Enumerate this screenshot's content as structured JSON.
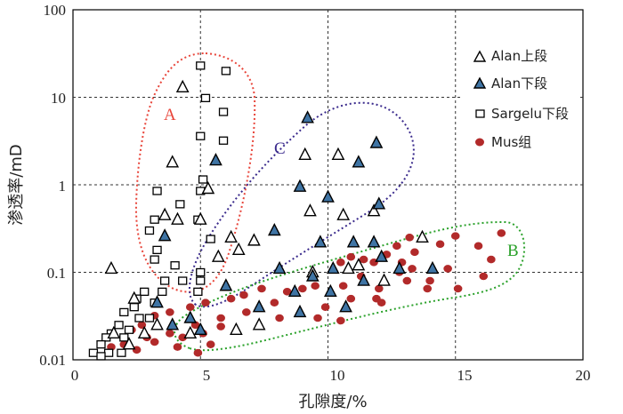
{
  "chart_data": {
    "type": "scatter",
    "xlabel": "孔隙度/%",
    "ylabel": "渗透率/mD",
    "xlim": [
      0,
      20
    ],
    "ylim": [
      0.01,
      100
    ],
    "yscale": "log",
    "x_ticks": [
      "0",
      "5",
      "10",
      "15",
      "20"
    ],
    "y_ticks": [
      "0.01",
      "0.1",
      "1",
      "10",
      "100"
    ],
    "grid": "dashed, at x = 5, 10, 15 and y = 0.1, 1, 10",
    "legend_position": "top-right",
    "series": [
      {
        "name": "Alan上段",
        "marker": "open-triangle",
        "color": "#ffffff",
        "stroke": "#000000",
        "points": [
          [
            4.3,
            13
          ],
          [
            3.9,
            1.8
          ],
          [
            5.3,
            0.9
          ],
          [
            3.6,
            0.45
          ],
          [
            4.1,
            0.4
          ],
          [
            5.7,
            0.15
          ],
          [
            6.5,
            0.18
          ],
          [
            7.1,
            0.23
          ],
          [
            6.2,
            0.25
          ],
          [
            9.1,
            2.2
          ],
          [
            10.4,
            2.2
          ],
          [
            9.3,
            0.5
          ],
          [
            10.6,
            0.45
          ],
          [
            11.8,
            0.5
          ],
          [
            11.2,
            0.12
          ],
          [
            12.2,
            0.08
          ],
          [
            13.7,
            0.25
          ],
          [
            1.5,
            0.11
          ],
          [
            2.4,
            0.05
          ],
          [
            3.3,
            0.025
          ],
          [
            4.6,
            0.02
          ],
          [
            1.6,
            0.02
          ],
          [
            2.2,
            0.015
          ],
          [
            2.8,
            0.02
          ],
          [
            6.4,
            0.022
          ],
          [
            7.3,
            0.025
          ],
          [
            9.4,
            0.1
          ],
          [
            10.8,
            0.11
          ],
          [
            5.0,
            0.4
          ]
        ]
      },
      {
        "name": "Alan下段",
        "marker": "filled-triangle",
        "color": "#3f74a4",
        "stroke": "#000000",
        "points": [
          [
            9.2,
            5.8
          ],
          [
            11.9,
            3.0
          ],
          [
            12.0,
            0.6
          ],
          [
            10.0,
            0.72
          ],
          [
            8.9,
            0.95
          ],
          [
            11.2,
            1.8
          ],
          [
            5.6,
            1.9
          ],
          [
            7.9,
            0.3
          ],
          [
            9.7,
            0.22
          ],
          [
            11.0,
            0.22
          ],
          [
            11.8,
            0.22
          ],
          [
            3.6,
            0.26
          ],
          [
            8.1,
            0.11
          ],
          [
            9.4,
            0.09
          ],
          [
            10.2,
            0.11
          ],
          [
            12.1,
            0.15
          ],
          [
            12.8,
            0.11
          ],
          [
            14.1,
            0.11
          ],
          [
            6.0,
            0.07
          ],
          [
            8.7,
            0.06
          ],
          [
            10.1,
            0.06
          ],
          [
            11.4,
            0.08
          ],
          [
            7.3,
            0.04
          ],
          [
            8.9,
            0.035
          ],
          [
            10.7,
            0.04
          ],
          [
            3.3,
            0.045
          ],
          [
            4.6,
            0.03
          ],
          [
            5.0,
            0.022
          ],
          [
            3.9,
            0.025
          ]
        ]
      },
      {
        "name": "Sargelu下段",
        "marker": "open-square",
        "color": "#ffffff",
        "stroke": "#000000",
        "points": [
          [
            5.0,
            23
          ],
          [
            6.0,
            20
          ],
          [
            5.2,
            9.8
          ],
          [
            5.9,
            6.8
          ],
          [
            5.0,
            3.6
          ],
          [
            5.9,
            3.2
          ],
          [
            5.1,
            1.15
          ],
          [
            3.3,
            0.85
          ],
          [
            5.0,
            0.85
          ],
          [
            4.2,
            0.6
          ],
          [
            3.2,
            0.4
          ],
          [
            4.9,
            0.4
          ],
          [
            3.0,
            0.3
          ],
          [
            5.4,
            0.24
          ],
          [
            3.3,
            0.18
          ],
          [
            4.0,
            0.12
          ],
          [
            3.2,
            0.14
          ],
          [
            5.0,
            0.1
          ],
          [
            3.6,
            0.08
          ],
          [
            4.3,
            0.08
          ],
          [
            5.0,
            0.08
          ],
          [
            2.8,
            0.06
          ],
          [
            3.5,
            0.06
          ],
          [
            4.9,
            0.06
          ],
          [
            2.5,
            0.05
          ],
          [
            3.2,
            0.045
          ],
          [
            2.4,
            0.04
          ],
          [
            2.0,
            0.035
          ],
          [
            3.0,
            0.03
          ],
          [
            2.6,
            0.03
          ],
          [
            1.8,
            0.025
          ],
          [
            2.2,
            0.022
          ],
          [
            1.5,
            0.02
          ],
          [
            1.3,
            0.018
          ],
          [
            2.0,
            0.018
          ],
          [
            1.1,
            0.015
          ],
          [
            0.8,
            0.012
          ],
          [
            1.4,
            0.012
          ],
          [
            1.9,
            0.012
          ],
          [
            1.1,
            0.011
          ]
        ]
      },
      {
        "name": "Mus组",
        "marker": "filled-circle",
        "color": "#b22a2a",
        "stroke": "#b22a2a",
        "points": [
          [
            16.8,
            0.28
          ],
          [
            15.0,
            0.26
          ],
          [
            15.9,
            0.2
          ],
          [
            16.4,
            0.14
          ],
          [
            16.1,
            0.09
          ],
          [
            15.1,
            0.065
          ],
          [
            13.2,
            0.25
          ],
          [
            12.7,
            0.2
          ],
          [
            14.4,
            0.21
          ],
          [
            13.4,
            0.17
          ],
          [
            12.3,
            0.16
          ],
          [
            11.8,
            0.13
          ],
          [
            11.4,
            0.14
          ],
          [
            12.9,
            0.13
          ],
          [
            13.3,
            0.11
          ],
          [
            14.7,
            0.11
          ],
          [
            10.5,
            0.13
          ],
          [
            10.9,
            0.15
          ],
          [
            12.8,
            0.1
          ],
          [
            11.3,
            0.09
          ],
          [
            13.1,
            0.08
          ],
          [
            14.0,
            0.08
          ],
          [
            12.0,
            0.065
          ],
          [
            13.9,
            0.065
          ],
          [
            10.6,
            0.07
          ],
          [
            9.5,
            0.07
          ],
          [
            11.9,
            0.05
          ],
          [
            10.9,
            0.05
          ],
          [
            9.0,
            0.065
          ],
          [
            8.4,
            0.06
          ],
          [
            7.4,
            0.065
          ],
          [
            6.7,
            0.055
          ],
          [
            7.9,
            0.045
          ],
          [
            9.9,
            0.04
          ],
          [
            12.1,
            0.045
          ],
          [
            6.2,
            0.05
          ],
          [
            5.2,
            0.045
          ],
          [
            4.6,
            0.04
          ],
          [
            3.8,
            0.035
          ],
          [
            6.8,
            0.035
          ],
          [
            9.6,
            0.03
          ],
          [
            10.5,
            0.028
          ],
          [
            8.1,
            0.03
          ],
          [
            5.8,
            0.03
          ],
          [
            4.8,
            0.025
          ],
          [
            3.2,
            0.032
          ],
          [
            2.7,
            0.025
          ],
          [
            3.8,
            0.02
          ],
          [
            5.1,
            0.02
          ],
          [
            4.3,
            0.018
          ],
          [
            4.1,
            0.014
          ],
          [
            3.2,
            0.016
          ],
          [
            2.0,
            0.015
          ],
          [
            2.3,
            0.022
          ],
          [
            1.5,
            0.014
          ],
          [
            2.5,
            0.013
          ],
          [
            5.4,
            0.015
          ],
          [
            4.9,
            0.012
          ],
          [
            2.9,
            0.018
          ],
          [
            5.8,
            0.024
          ]
        ]
      }
    ],
    "annotations": [
      {
        "text": "A",
        "color": "#e8453a",
        "region": "red dotted ellipse enclosing high-permeability Sargelu下段 and Alan上段 points near 5% porosity"
      },
      {
        "text": "C",
        "color": "#3a2a8c",
        "region": "purple dotted ellipse along the diagonal from 5%/0.03 mD to 12%/6 mD"
      },
      {
        "text": "B",
        "color": "#2aa12a",
        "region": "green dotted ellipse enclosing Mus组 points from 3% to 17% porosity"
      }
    ]
  }
}
